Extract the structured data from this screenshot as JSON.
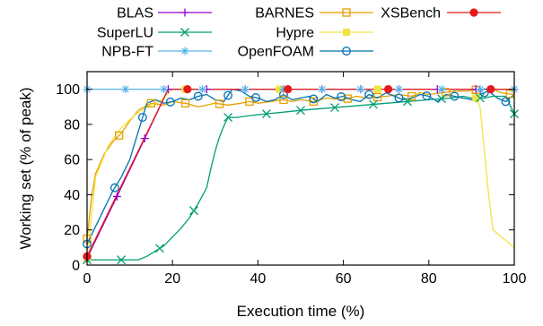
{
  "chart_data": {
    "type": "line",
    "xlabel": "Execution time (%)",
    "ylabel": "Working set (% of peak)",
    "xlim": [
      0,
      100
    ],
    "ylim": [
      0,
      110
    ],
    "xticks": [
      "0",
      "20",
      "40",
      "60",
      "80",
      "100"
    ],
    "yticks": [
      "0",
      "20",
      "40",
      "60",
      "80",
      "100"
    ],
    "grid": false,
    "legend_placement": "top",
    "series": [
      {
        "name": "BLAS",
        "color": "#9400d3",
        "marker": "plus",
        "x": [
          0,
          7,
          13.5,
          19,
          100
        ],
        "y": [
          4,
          39,
          72,
          100,
          100
        ],
        "marker_x": [
          0,
          7,
          13.5,
          19,
          28,
          37,
          46,
          55,
          64,
          73,
          82,
          91,
          100
        ]
      },
      {
        "name": "SuperLU",
        "color": "#009e73",
        "marker": "x",
        "x": [
          0,
          3,
          8,
          12,
          14,
          16,
          18,
          20,
          22,
          24,
          26,
          28,
          29,
          30,
          31,
          32,
          33,
          35,
          38,
          42,
          46,
          50,
          55,
          60,
          65,
          70,
          75,
          80,
          85,
          88,
          90,
          93,
          95,
          98,
          100
        ],
        "y": [
          3,
          3,
          3,
          3,
          5,
          8,
          11,
          16,
          21,
          27,
          35,
          44,
          55,
          65,
          73,
          79,
          84,
          84,
          85,
          86,
          87,
          88,
          89,
          90,
          91,
          92,
          93,
          94,
          95,
          96,
          95,
          95,
          96,
          96,
          86
        ],
        "marker_x": [
          0,
          8,
          17,
          25,
          33,
          42,
          50,
          58,
          67,
          75,
          83,
          92,
          100
        ]
      },
      {
        "name": "NPB-FT",
        "color": "#56b4e9",
        "marker": "star",
        "x": [
          0,
          100
        ],
        "y": [
          100,
          100
        ],
        "marker_x": [
          0,
          9,
          18,
          27,
          37,
          46,
          55,
          64,
          73,
          83,
          92,
          100
        ]
      },
      {
        "name": "BARNES",
        "color": "#e69f00",
        "marker": "box",
        "x": [
          0,
          1,
          2,
          4,
          6,
          8,
          10,
          12,
          15,
          18,
          20,
          23,
          26,
          28,
          30,
          33,
          36,
          38,
          40,
          43,
          46,
          48,
          50,
          53,
          56,
          60,
          63,
          66,
          70,
          73,
          76,
          78,
          80,
          83,
          86,
          89,
          92,
          95,
          97,
          100
        ],
        "y": [
          15,
          38,
          52,
          63,
          70,
          75,
          82,
          88,
          92,
          91,
          93,
          92,
          90,
          91,
          92,
          91,
          92,
          93,
          92,
          93,
          94,
          93,
          94,
          93,
          95,
          94,
          96,
          95,
          96,
          97,
          96,
          98,
          97,
          98,
          99,
          99,
          100,
          100,
          98,
          97
        ],
        "marker_x": [
          0,
          7.5,
          15,
          23,
          31,
          38,
          46,
          53,
          61,
          68,
          76,
          84,
          91,
          99
        ]
      },
      {
        "name": "Hypre",
        "color": "#f0e442",
        "marker": "filled-box",
        "x": [
          0,
          2,
          5,
          8,
          11,
          14,
          17,
          20,
          40,
          60,
          80,
          90,
          92,
          93,
          94,
          95,
          100
        ],
        "y": [
          4,
          50,
          68,
          78,
          85,
          90,
          93,
          100,
          100,
          100,
          100,
          100,
          90,
          65,
          40,
          20,
          10
        ],
        "marker_x": [
          0,
          23,
          45,
          68,
          91
        ]
      },
      {
        "name": "OpenFOAM",
        "color": "#0072b2",
        "marker": "circle",
        "x": [
          0,
          2,
          4,
          6,
          8,
          10,
          12,
          14,
          16,
          18,
          20,
          22,
          24,
          26,
          28,
          30,
          32,
          34,
          36,
          38,
          40,
          42,
          44,
          46,
          48,
          50,
          52,
          54,
          56,
          58,
          60,
          62,
          64,
          66,
          68,
          70,
          72,
          74,
          76,
          78,
          80,
          82,
          84,
          86,
          88,
          90,
          92,
          94,
          96,
          98,
          100
        ],
        "y": [
          12,
          22,
          32,
          42,
          50,
          60,
          76,
          92,
          94,
          92,
          93,
          95,
          94,
          96,
          97,
          94,
          93,
          100,
          99,
          96,
          95,
          93,
          94,
          97,
          94,
          95,
          96,
          93,
          97,
          95,
          96,
          94,
          93,
          97,
          95,
          98,
          96,
          94,
          95,
          97,
          96,
          93,
          97,
          96,
          95,
          94,
          97,
          99,
          95,
          93,
          97
        ],
        "marker_x": [
          0,
          6.5,
          13,
          19.5,
          26,
          33,
          39.5,
          46,
          53,
          59.5,
          66,
          73,
          79.5,
          86,
          93,
          98
        ]
      },
      {
        "name": "XSBench",
        "color": "#e41a1c",
        "marker": "filled-circle",
        "x": [
          0,
          19,
          100
        ],
        "y": [
          5,
          100,
          100
        ],
        "marker_x": [
          0,
          23.5,
          47,
          70.5,
          94.5
        ]
      }
    ]
  }
}
